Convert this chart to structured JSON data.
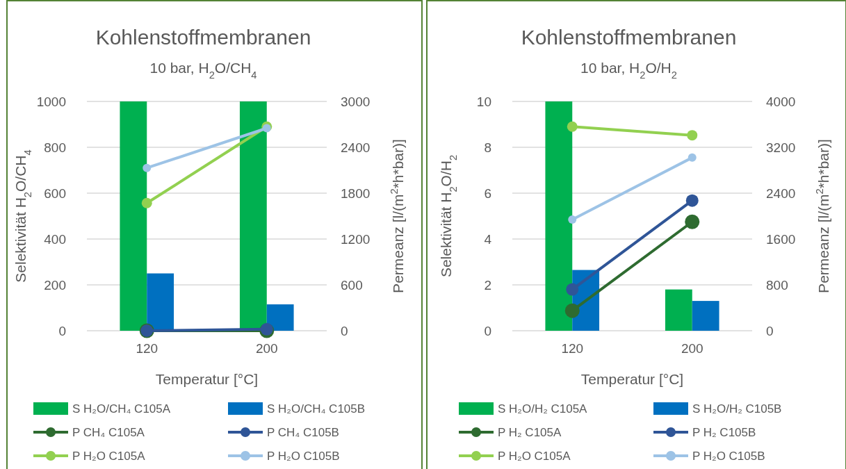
{
  "chart_data": [
    {
      "type": "bar",
      "title": "Kohlenstoffmembranen",
      "subtitle": "10 bar, H$_{2}$O/CH$_{4}$",
      "xlabel": "Temperatur [°C]",
      "ylabel": "Selektivität H$_{2}$O/CH$_{4}$",
      "y2label": "Permeanz [l/(m$^{2}$*h*bar)]",
      "categories": [
        "120",
        "200"
      ],
      "series": [
        {
          "name": "S H₂O/CH₄ C105A",
          "color": "#00b050",
          "values": [
            1000,
            1000
          ]
        },
        {
          "name": "S H₂O/CH₄ C105B",
          "color": "#0070c0",
          "values": [
            250,
            115
          ]
        },
        {
          "name": "P CH₄ C105A",
          "type": "line",
          "axis": "y2",
          "color": "#2e6b30",
          "values": [
            0,
            0
          ]
        },
        {
          "name": "P CH₄ C105B",
          "type": "line",
          "axis": "y2",
          "color": "#2f5597",
          "values": [
            0,
            20
          ]
        },
        {
          "name": "P H₂O C105A",
          "type": "line",
          "axis": "y2",
          "color": "#92d050",
          "values": [
            1670,
            2670
          ]
        },
        {
          "name": "P H₂O C105B",
          "type": "line",
          "axis": "y2",
          "color": "#9dc3e6",
          "values": [
            2130,
            2650
          ]
        }
      ],
      "ylim": [
        0,
        1000
      ],
      "yticks": [
        0,
        200,
        400,
        600,
        800,
        1000
      ],
      "y2lim": [
        0,
        3000
      ],
      "y2ticks": [
        0,
        600,
        1200,
        1800,
        2400,
        3000
      ],
      "grid": "y",
      "legend": "bottom",
      "marker": "circle",
      "line_style": "solid"
    },
    {
      "type": "bar",
      "title": "Kohlenstoffmembranen",
      "subtitle": "10 bar, H$_{2}$O/H$_{2}$",
      "xlabel": "Temperatur [°C]",
      "ylabel": "Selektivität H$_{2}$O/H$_{2}$",
      "y2label": "Permeanz [l/(m$^{2}$*h*bar)]",
      "categories": [
        "120",
        "200"
      ],
      "series": [
        {
          "name": "S H₂O/H₂ C105A",
          "color": "#00b050",
          "values": [
            10,
            1.8
          ]
        },
        {
          "name": "S H₂O/H₂ C105B",
          "color": "#0070c0",
          "values": [
            2.65,
            1.3
          ]
        },
        {
          "name": "P H₂ C105A",
          "type": "line",
          "axis": "y2",
          "color": "#2e6b30",
          "values": [
            350,
            1900
          ]
        },
        {
          "name": "P H₂ C105B",
          "type": "line",
          "axis": "y2",
          "color": "#2f5597",
          "values": [
            720,
            2270
          ]
        },
        {
          "name": "P H₂O C105A",
          "type": "line",
          "axis": "y2",
          "color": "#92d050",
          "values": [
            3560,
            3410
          ]
        },
        {
          "name": "P H₂O C105B",
          "type": "line",
          "axis": "y2",
          "color": "#9dc3e6",
          "values": [
            1940,
            3020
          ]
        }
      ],
      "ylim": [
        0,
        10
      ],
      "yticks": [
        0,
        2,
        4,
        6,
        8,
        10
      ],
      "y2lim": [
        0,
        4000
      ],
      "y2ticks": [
        0,
        800,
        1600,
        2400,
        3200,
        4000
      ],
      "grid": "y",
      "legend": "bottom",
      "marker": "circle",
      "line_style": "solid"
    }
  ]
}
